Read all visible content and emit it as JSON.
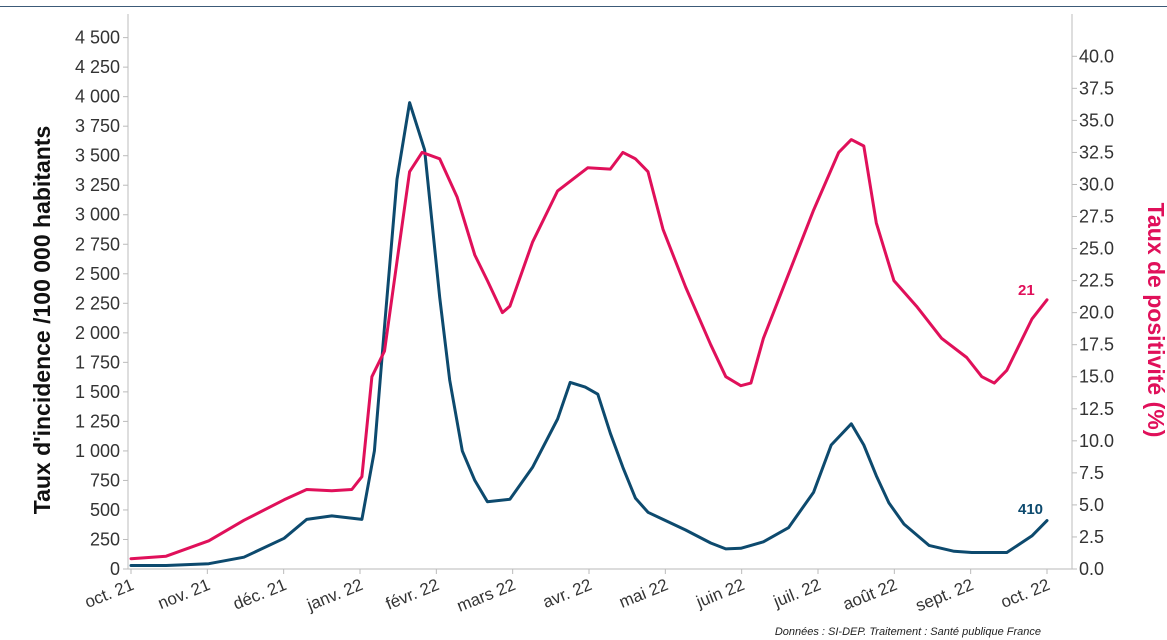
{
  "chart_data": {
    "type": "line",
    "ylabel": "Taux d'incidence /100 000 habitants",
    "y2label": "Taux de positivité (%)",
    "source": "Données : SI-DEP. Traitement : Santé publique France",
    "x_ticks": [
      "oct. 21",
      "nov. 21",
      "déc. 21",
      "janv. 22",
      "févr. 22",
      "mars 22",
      "avr. 22",
      "mai 22",
      "juin 22",
      "juil. 22",
      "août 22",
      "sept. 22",
      "oct. 22"
    ],
    "y_ticks": [
      "0",
      "250",
      "500",
      "750",
      "1 000",
      "1 250",
      "1 500",
      "1 750",
      "2 000",
      "2 250",
      "2 500",
      "2 750",
      "3 000",
      "3 250",
      "3 500",
      "3 750",
      "4 000",
      "4 250",
      "4 500"
    ],
    "y2_ticks": [
      "0.0",
      "2.5",
      "5.0",
      "7.5",
      "10.0",
      "12.5",
      "15.0",
      "17.5",
      "20.0",
      "22.5",
      "25.0",
      "27.5",
      "30.0",
      "32.5",
      "35.0",
      "37.5",
      "40.0"
    ],
    "ylim": [
      0,
      4700
    ],
    "y2lim": [
      0,
      43.3
    ],
    "grid": false,
    "colors": {
      "incidence": "#0d4a6e",
      "positivite": "#e0105a"
    },
    "series": [
      {
        "key": "incidence",
        "axis": "left",
        "last_label": "410",
        "x": [
          "2021-10-01",
          "2021-10-15",
          "2021-11-01",
          "2021-11-15",
          "2021-12-01",
          "2021-12-10",
          "2021-12-20",
          "2022-01-01",
          "2022-01-06",
          "2022-01-10",
          "2022-01-15",
          "2022-01-20",
          "2022-01-26",
          "2022-02-01",
          "2022-02-05",
          "2022-02-10",
          "2022-02-15",
          "2022-02-20",
          "2022-03-01",
          "2022-03-10",
          "2022-03-20",
          "2022-03-25",
          "2022-03-31",
          "2022-04-05",
          "2022-04-10",
          "2022-04-15",
          "2022-04-20",
          "2022-04-25",
          "2022-05-01",
          "2022-05-10",
          "2022-05-20",
          "2022-05-26",
          "2022-06-01",
          "2022-06-05",
          "2022-06-10",
          "2022-06-20",
          "2022-06-30",
          "2022-07-07",
          "2022-07-15",
          "2022-07-20",
          "2022-07-25",
          "2022-07-30",
          "2022-08-05",
          "2022-08-15",
          "2022-08-25",
          "2022-09-01",
          "2022-09-15",
          "2022-09-25",
          "2022-10-01"
        ],
        "values": [
          30,
          30,
          45,
          100,
          260,
          420,
          450,
          420,
          1000,
          2050,
          3300,
          3950,
          3550,
          2300,
          1600,
          1000,
          750,
          570,
          590,
          860,
          1270,
          1580,
          1540,
          1480,
          1150,
          860,
          600,
          480,
          420,
          330,
          220,
          170,
          175,
          200,
          230,
          350,
          650,
          1050,
          1230,
          1050,
          790,
          560,
          380,
          200,
          150,
          140,
          140,
          280,
          410
        ]
      },
      {
        "key": "positivite",
        "axis": "right",
        "last_label": "21",
        "x": [
          "2021-10-01",
          "2021-10-15",
          "2021-11-01",
          "2021-11-15",
          "2021-12-01",
          "2021-12-10",
          "2021-12-20",
          "2021-12-28",
          "2022-01-01",
          "2022-01-05",
          "2022-01-10",
          "2022-01-15",
          "2022-01-20",
          "2022-01-25",
          "2022-02-01",
          "2022-02-08",
          "2022-02-15",
          "2022-02-20",
          "2022-02-26",
          "2022-03-01",
          "2022-03-10",
          "2022-03-20",
          "2022-04-01",
          "2022-04-10",
          "2022-04-15",
          "2022-04-20",
          "2022-04-25",
          "2022-05-01",
          "2022-05-10",
          "2022-05-20",
          "2022-05-26",
          "2022-06-01",
          "2022-06-05",
          "2022-06-10",
          "2022-06-20",
          "2022-06-30",
          "2022-07-10",
          "2022-07-15",
          "2022-07-20",
          "2022-07-25",
          "2022-08-01",
          "2022-08-10",
          "2022-08-20",
          "2022-08-30",
          "2022-09-05",
          "2022-09-10",
          "2022-09-15",
          "2022-09-25",
          "2022-10-01"
        ],
        "values": [
          0.8,
          1.0,
          2.2,
          3.8,
          5.4,
          6.2,
          6.1,
          6.2,
          7.2,
          15.0,
          17.0,
          24.0,
          31.0,
          32.5,
          32.0,
          29.0,
          24.5,
          22.5,
          20.0,
          20.5,
          25.5,
          29.5,
          31.3,
          31.2,
          32.5,
          32.0,
          31.0,
          26.5,
          22.0,
          17.5,
          15.0,
          14.3,
          14.5,
          18.0,
          23.0,
          28.0,
          32.5,
          33.5,
          33.0,
          27.0,
          22.5,
          20.5,
          18.0,
          16.5,
          15.0,
          14.5,
          15.5,
          19.5,
          21.0
        ]
      }
    ]
  }
}
